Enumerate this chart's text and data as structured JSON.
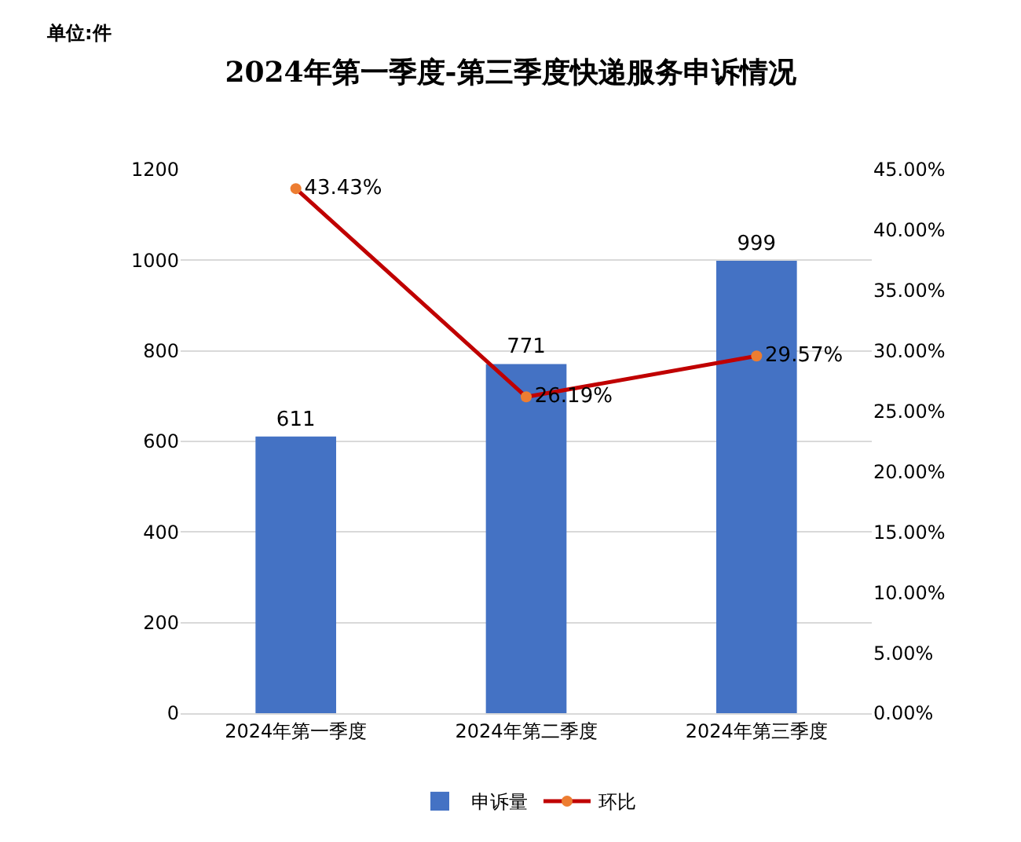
{
  "chart_data": {
    "type": "bar",
    "title": "2024年第一季度-第三季度快递服务申诉情况",
    "annotations": [
      "单位:件"
    ],
    "categories": [
      "2024年第一季度",
      "2024年第二季度",
      "2024年第三季度"
    ],
    "series": [
      {
        "name": "申诉量",
        "color": "#4472c4",
        "values": [
          611,
          771,
          999
        ],
        "value_labels": [
          "611",
          "771",
          "999"
        ]
      },
      {
        "name": "环比",
        "type": "line",
        "axis": "y2",
        "color": "#c00000",
        "colors": [
          "#ed7d31",
          "#ed7d31",
          "#ed7d31"
        ],
        "marker": "circle",
        "values": [
          43.43,
          26.19,
          29.57
        ],
        "value_labels": [
          "43.43%",
          "26.19%",
          "29.57%"
        ]
      }
    ],
    "ylim": [
      0,
      1200
    ],
    "yticks": [
      0,
      200,
      400,
      600,
      800,
      1000,
      1200
    ],
    "y2lim": [
      0,
      45
    ],
    "y2ticks": [
      {
        "value": 0,
        "label": "0.00%"
      },
      {
        "value": 5,
        "label": "5.00%"
      },
      {
        "value": 10,
        "label": "10.00%"
      },
      {
        "value": 15,
        "label": "15.00%"
      },
      {
        "value": 20,
        "label": "20.00%"
      },
      {
        "value": 25,
        "label": "25.00%"
      },
      {
        "value": 30,
        "label": "30.00%"
      },
      {
        "value": 35,
        "label": "35.00%"
      },
      {
        "value": 40,
        "label": "40.00%"
      },
      {
        "value": 45,
        "label": "45.00%"
      }
    ],
    "grid": "y",
    "legend": "bottom"
  }
}
